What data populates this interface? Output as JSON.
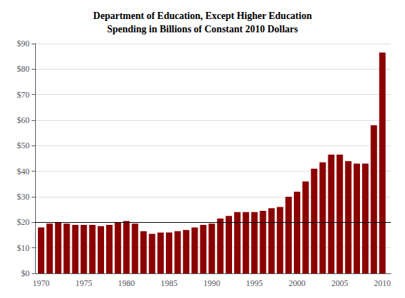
{
  "chart_data": {
    "type": "bar",
    "title": "Department of Education, Except Higher Education\nSpending in Billions of Constant 2010 Dollars",
    "x": [
      1970,
      1971,
      1972,
      1973,
      1974,
      1975,
      1976,
      1977,
      1978,
      1979,
      1980,
      1981,
      1982,
      1983,
      1984,
      1985,
      1986,
      1987,
      1988,
      1989,
      1990,
      1991,
      1992,
      1993,
      1994,
      1995,
      1996,
      1997,
      1998,
      1999,
      2000,
      2001,
      2002,
      2003,
      2004,
      2005,
      2006,
      2007,
      2008,
      2009,
      2010
    ],
    "values": [
      18.0,
      19.5,
      20.0,
      19.5,
      19.0,
      19.0,
      19.0,
      18.5,
      19.0,
      20.0,
      20.5,
      19.5,
      16.5,
      15.5,
      16.0,
      16.0,
      16.5,
      17.0,
      18.0,
      19.0,
      19.5,
      21.5,
      22.5,
      24.0,
      24.0,
      24.0,
      24.5,
      25.5,
      26.0,
      30.0,
      32.0,
      36.0,
      41.0,
      43.5,
      46.5,
      46.5,
      44.0,
      43.0,
      43.0,
      58.0,
      86.5
    ],
    "color": "#8B0000",
    "xlim": [
      1969.3,
      2011.0
    ],
    "xticks": [
      1970,
      1975,
      1980,
      1985,
      1990,
      1995,
      2000,
      2005,
      2010
    ],
    "ylim": [
      0,
      90
    ],
    "yticks": [
      {
        "value": 0,
        "label": "$0"
      },
      {
        "value": 10,
        "label": "$10"
      },
      {
        "value": 20,
        "label": "$20"
      },
      {
        "value": 30,
        "label": "$30"
      },
      {
        "value": 40,
        "label": "$40"
      },
      {
        "value": 50,
        "label": "$50"
      },
      {
        "value": 60,
        "label": "$60"
      },
      {
        "value": 70,
        "label": "$70"
      },
      {
        "value": 80,
        "label": "$80"
      },
      {
        "value": 90,
        "label": "$90"
      }
    ],
    "hline": {
      "value": 20,
      "color": "#000000"
    },
    "grid": true
  }
}
